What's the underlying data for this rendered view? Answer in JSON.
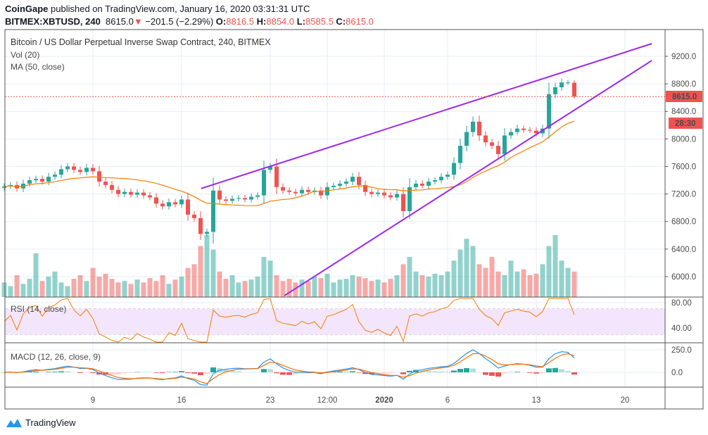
{
  "header": {
    "publisher": "CoinGape",
    "published_text": "published on TradingView.com, January 16, 2020 03:31:31 UTC",
    "symbol": "BITMEX:XBTUSD, 240",
    "last": "8615.0",
    "change": "−201.5 (−2.29%)",
    "o_label": "O:",
    "o": "8816.5",
    "h_label": "H:",
    "h": "8854.0",
    "l_label": "L:",
    "l": "8585.5",
    "c_label": "C:",
    "c": "8615.0",
    "change_icon": "triangle-down-icon"
  },
  "legend": {
    "title": "Bitcoin / US Dollar Perpetual Inverse Swap Contract, 240, BITMEX",
    "vol": "Vol (20)",
    "ma": "MA (50, close)",
    "rsi": "RSI (14, close)",
    "macd": "MACD (12, 26, close, 9)"
  },
  "price_label": "8615.0",
  "countdown": "28:30",
  "brand": "TradingView",
  "colors": {
    "up": "#26a69a",
    "down": "#ef5350",
    "ma": "#f57c00",
    "trend": "#9c27f0",
    "rsi": "#f57c00",
    "rsi_band": "#f3e6fc",
    "macd": "#2196f3",
    "signal": "#ff6d00"
  },
  "chart_data": {
    "type": "candlestick",
    "price_axis": {
      "ticks": [
        "9200.0",
        "8800.0",
        "8400.0",
        "8000.0",
        "7600.0",
        "7200.0",
        "6800.0",
        "6400.0",
        "6000.0"
      ],
      "range": [
        5860,
        9590
      ]
    },
    "rsi_axis": {
      "ticks": [
        "80.00",
        "40.00"
      ],
      "bands": [
        30,
        70
      ]
    },
    "macd_axis": {
      "ticks": [
        "250.0",
        "0.0"
      ]
    },
    "time_ticks": [
      {
        "label": "9",
        "t": "2019-12-09 00:00"
      },
      {
        "label": "16",
        "t": "2019-12-16 00:00"
      },
      {
        "label": "23",
        "t": "2019-12-23 00:00"
      },
      {
        "label": "12:00",
        "t": "2019-12-27 12:00"
      },
      {
        "label": "2020",
        "t": "2020-01-01 00:00"
      },
      {
        "label": "6",
        "t": "2020-01-06 00:00"
      },
      {
        "label": "13",
        "t": "2020-01-13 00:00"
      },
      {
        "label": "20",
        "t": "2020-01-20 00:00"
      }
    ],
    "x": [
      "2019-12-02 00:00",
      "2019-12-02 12:00",
      "2019-12-03 00:00",
      "2019-12-03 12:00",
      "2019-12-04 00:00",
      "2019-12-04 12:00",
      "2019-12-05 00:00",
      "2019-12-05 12:00",
      "2019-12-06 00:00",
      "2019-12-06 12:00",
      "2019-12-07 00:00",
      "2019-12-07 12:00",
      "2019-12-08 00:00",
      "2019-12-08 12:00",
      "2019-12-09 00:00",
      "2019-12-09 12:00",
      "2019-12-10 00:00",
      "2019-12-10 12:00",
      "2019-12-11 00:00",
      "2019-12-11 12:00",
      "2019-12-12 00:00",
      "2019-12-12 12:00",
      "2019-12-13 00:00",
      "2019-12-13 12:00",
      "2019-12-14 00:00",
      "2019-12-14 12:00",
      "2019-12-15 00:00",
      "2019-12-15 12:00",
      "2019-12-16 00:00",
      "2019-12-16 12:00",
      "2019-12-17 00:00",
      "2019-12-17 12:00",
      "2019-12-18 00:00",
      "2019-12-18 12:00",
      "2019-12-19 00:00",
      "2019-12-19 12:00",
      "2019-12-20 00:00",
      "2019-12-20 12:00",
      "2019-12-21 00:00",
      "2019-12-21 12:00",
      "2019-12-22 00:00",
      "2019-12-22 12:00",
      "2019-12-23 00:00",
      "2019-12-23 12:00",
      "2019-12-24 00:00",
      "2019-12-24 12:00",
      "2019-12-25 00:00",
      "2019-12-25 12:00",
      "2019-12-26 00:00",
      "2019-12-26 12:00",
      "2019-12-27 00:00",
      "2019-12-27 12:00",
      "2019-12-28 00:00",
      "2019-12-28 12:00",
      "2019-12-29 00:00",
      "2019-12-29 12:00",
      "2019-12-30 00:00",
      "2019-12-30 12:00",
      "2019-12-31 00:00",
      "2019-12-31 12:00",
      "2020-01-01 00:00",
      "2020-01-01 12:00",
      "2020-01-02 00:00",
      "2020-01-02 12:00",
      "2020-01-03 00:00",
      "2020-01-03 12:00",
      "2020-01-04 00:00",
      "2020-01-04 12:00",
      "2020-01-05 00:00",
      "2020-01-05 12:00",
      "2020-01-06 00:00",
      "2020-01-06 12:00",
      "2020-01-07 00:00",
      "2020-01-07 12:00",
      "2020-01-08 00:00",
      "2020-01-08 12:00",
      "2020-01-09 00:00",
      "2020-01-09 12:00",
      "2020-01-10 00:00",
      "2020-01-10 12:00",
      "2020-01-11 00:00",
      "2020-01-11 12:00",
      "2020-01-12 00:00",
      "2020-01-12 12:00",
      "2020-01-13 00:00",
      "2020-01-13 12:00",
      "2020-01-14 00:00",
      "2020-01-14 12:00",
      "2020-01-15 00:00",
      "2020-01-15 12:00",
      "2020-01-16 00:00"
    ],
    "close": [
      7310,
      7330,
      7280,
      7350,
      7400,
      7420,
      7380,
      7450,
      7480,
      7560,
      7600,
      7550,
      7520,
      7580,
      7530,
      7380,
      7330,
      7260,
      7200,
      7230,
      7190,
      7220,
      7180,
      7150,
      7060,
      7020,
      7080,
      7050,
      7120,
      6900,
      6850,
      6620,
      6650,
      7250,
      7120,
      7100,
      7130,
      7140,
      7120,
      7160,
      7180,
      7550,
      7600,
      7300,
      7250,
      7230,
      7210,
      7260,
      7230,
      7250,
      7180,
      7300,
      7320,
      7350,
      7380,
      7450,
      7330,
      7230,
      7200,
      7220,
      7180,
      7150,
      7200,
      6950,
      7300,
      7350,
      7320,
      7380,
      7400,
      7450,
      7480,
      7650,
      7900,
      8100,
      8250,
      8050,
      7950,
      7900,
      7780,
      8050,
      8100,
      8150,
      8130,
      8120,
      8080,
      8150,
      8650,
      8750,
      8820,
      8820,
      8615
    ],
    "last_bar": {
      "open": 8816.5,
      "high": 8854.0,
      "low": 8585.5,
      "close": 8615.0
    },
    "volume": [
      20,
      15,
      30,
      18,
      25,
      60,
      22,
      28,
      35,
      20,
      15,
      25,
      30,
      22,
      40,
      28,
      32,
      25,
      20,
      22,
      18,
      24,
      20,
      26,
      22,
      30,
      18,
      24,
      28,
      40,
      45,
      70,
      85,
      65,
      35,
      25,
      30,
      20,
      22,
      24,
      28,
      55,
      50,
      30,
      22,
      25,
      20,
      24,
      22,
      28,
      26,
      32,
      20,
      24,
      25,
      30,
      28,
      26,
      22,
      24,
      20,
      25,
      30,
      45,
      55,
      35,
      30,
      28,
      32,
      30,
      35,
      50,
      65,
      80,
      70,
      45,
      40,
      55,
      35,
      30,
      50,
      35,
      38,
      30,
      32,
      45,
      70,
      85,
      50,
      40,
      35
    ],
    "trendlines": [
      {
        "from": {
          "t": "2019-12-17 13:00",
          "p": 7280
        },
        "to": {
          "t": "2020-01-22 03:00",
          "p": 9384
        }
      },
      {
        "from": {
          "t": "2019-12-24 03:00",
          "p": 5724
        },
        "to": {
          "t": "2020-01-22 03:00",
          "p": 9139
        }
      }
    ]
  }
}
